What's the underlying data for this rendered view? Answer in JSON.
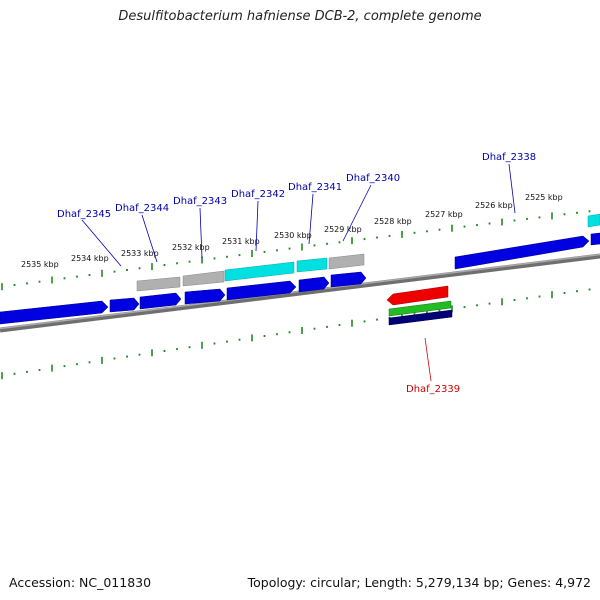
{
  "title": "Desulfitobacterium hafniense DCB-2, complete genome",
  "footer": {
    "accession": "Accession: NC_011830",
    "summary": "Topology: circular; Length: 5,279,134 bp; Genes: 4,972"
  },
  "scale_labels": [
    "2535 kbp",
    "2534 kbp",
    "2533 kbp",
    "2532 kbp",
    "2531 kbp",
    "2530 kbp",
    "2529 kbp",
    "2528 kbp",
    "2527 kbp",
    "2526 kbp",
    "2525 kbp"
  ],
  "gene_labels": [
    {
      "name": "Dhaf_2345",
      "color": "#0000aa"
    },
    {
      "name": "Dhaf_2344",
      "color": "#0000aa"
    },
    {
      "name": "Dhaf_2343",
      "color": "#0000aa"
    },
    {
      "name": "Dhaf_2342",
      "color": "#0000aa"
    },
    {
      "name": "Dhaf_2341",
      "color": "#0000aa"
    },
    {
      "name": "Dhaf_2340",
      "color": "#0000aa"
    },
    {
      "name": "Dhaf_2338",
      "color": "#0000aa"
    },
    {
      "name": "Dhaf_2339",
      "color": "#cc0000"
    }
  ],
  "colors": {
    "backbone": "#808080",
    "cds": "#0000dd",
    "gene": "#a8a8a8",
    "rna": "#00dddd",
    "red_feature": "#ee0000",
    "green_feature": "#22bb22",
    "navy_feature": "#000077",
    "ticks": "#228822"
  }
}
